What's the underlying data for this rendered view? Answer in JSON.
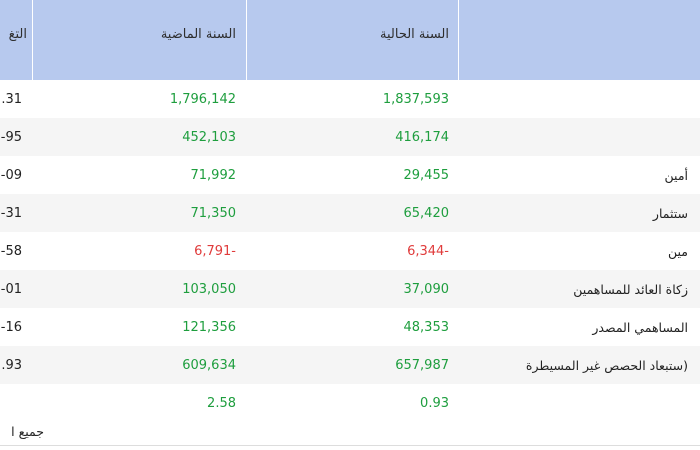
{
  "header": {
    "current_year": "السنة الحالية",
    "last_year": "السنة الماضية",
    "change": "التغ"
  },
  "rows": [
    {
      "label": "",
      "current": "1,837,593",
      "last": "1,796,142",
      "change": ".31",
      "tone": "green"
    },
    {
      "label": "",
      "current": "416,174",
      "last": "452,103",
      "change": "-95",
      "tone": "green"
    },
    {
      "label": "أمين",
      "current": "29,455",
      "last": "71,992",
      "change": "-09",
      "tone": "green"
    },
    {
      "label": "ستثمار",
      "current": "65,420",
      "last": "71,350",
      "change": "-31",
      "tone": "green"
    },
    {
      "label": "مين",
      "current": "6,344-",
      "last": "6,791-",
      "change": "-58",
      "tone": "red"
    },
    {
      "label": "زكاة العائد للمساهمين",
      "current": "37,090",
      "last": "103,050",
      "change": "-01",
      "tone": "green"
    },
    {
      "label": "المساهمي المصدر",
      "current": "48,353",
      "last": "121,356",
      "change": "-16",
      "tone": "green"
    },
    {
      "label": "ستبعاد الحصص غير المسيطرة)",
      "current": "657,987",
      "last": "609,634",
      "change": ".93",
      "tone": "green"
    },
    {
      "label": "",
      "current": "0.93",
      "last": "2.58",
      "change": "",
      "tone": "green"
    }
  ],
  "footnote": "جميع ا",
  "colors": {
    "header_bg": "#b7c9ee",
    "row_stripe": "#f5f5f5",
    "positive": "#1e9e3e",
    "negative": "#e03b3b"
  }
}
